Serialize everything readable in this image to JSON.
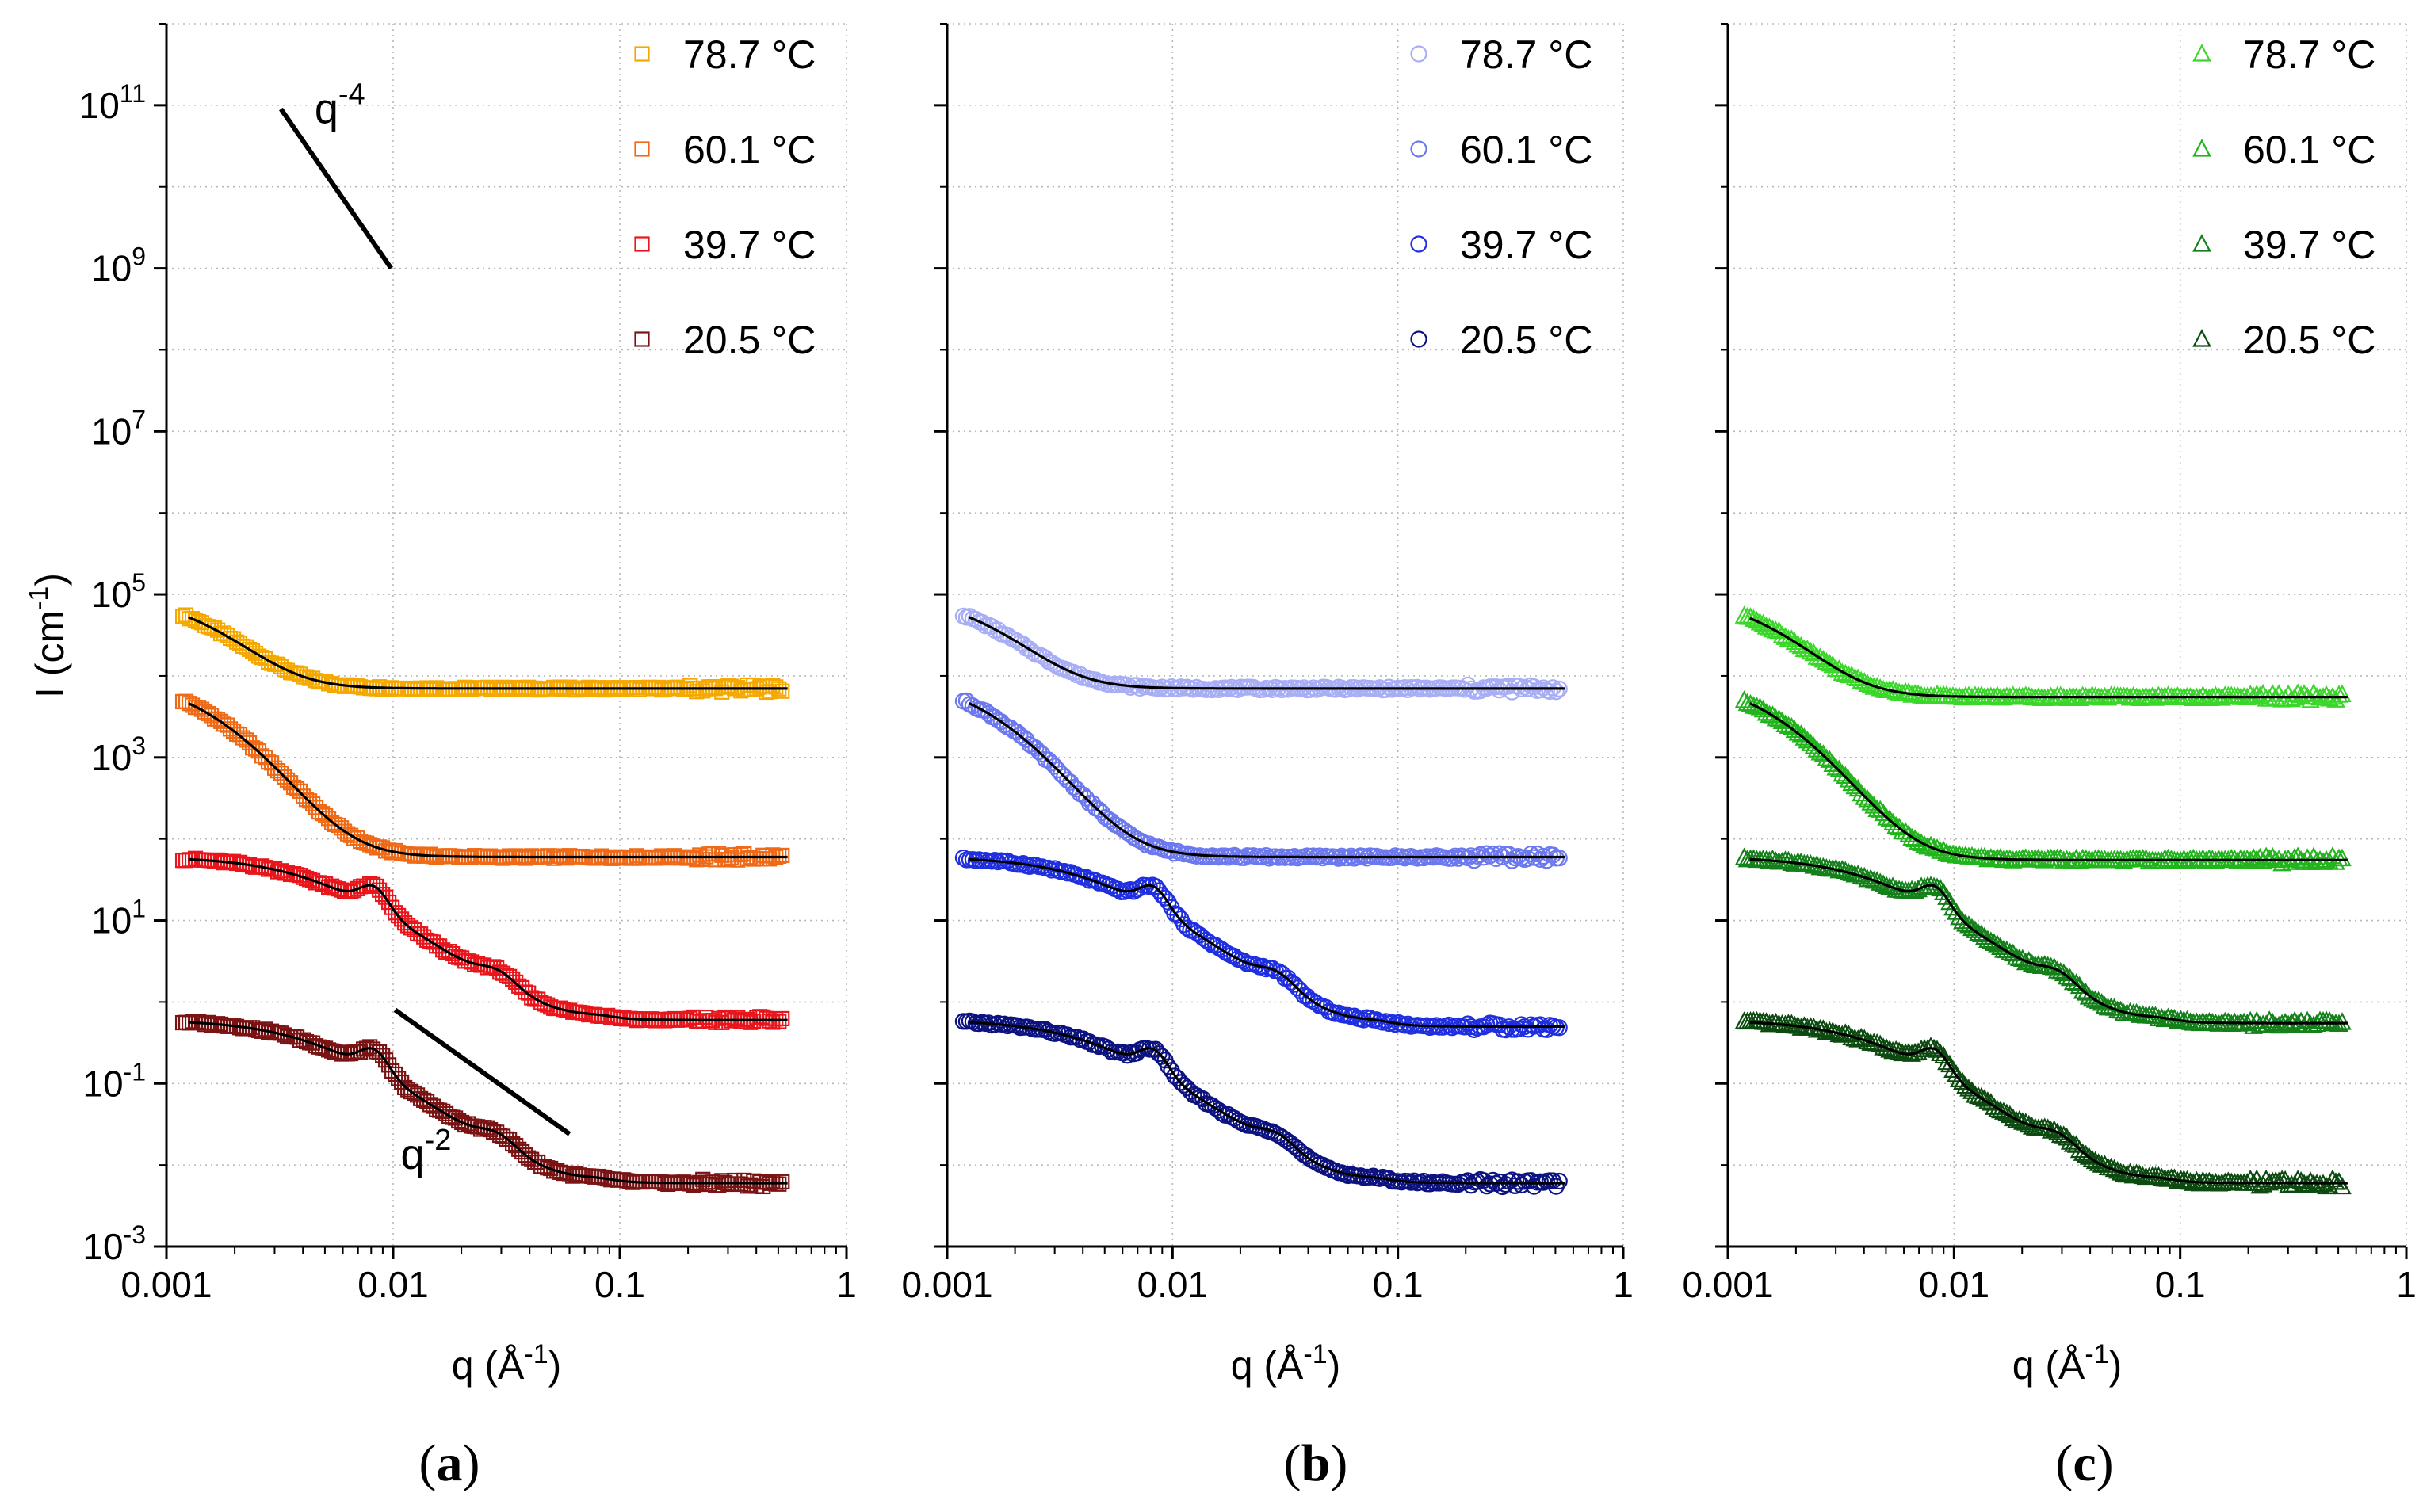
{
  "chart_data": [
    {
      "type": "scatter",
      "panel_label": {
        "open": "(",
        "letter": "a",
        "close": ")"
      },
      "marker": "square",
      "xlabel": {
        "base": "q (Å",
        "sup": "-1",
        "end": ")"
      },
      "ylabel": {
        "base": "I (cm",
        "sup": "-1",
        "end": ")"
      },
      "xscale": "log",
      "yscale": "log",
      "xlim": [
        0.001,
        1
      ],
      "ylim": [
        0.001,
        1000000000000.0
      ],
      "x_ticks": [
        "0.001",
        "0.01",
        "0.1",
        "1"
      ],
      "y_ticks": [
        {
          "base": "10",
          "exp": "-3"
        },
        {
          "base": "10",
          "exp": "-1"
        },
        {
          "base": "10",
          "exp": "1"
        },
        {
          "base": "10",
          "exp": "3"
        },
        {
          "base": "10",
          "exp": "5"
        },
        {
          "base": "10",
          "exp": "7"
        },
        {
          "base": "10",
          "exp": "9"
        },
        {
          "base": "10",
          "exp": "11"
        }
      ],
      "grid": true,
      "legend_position": "top-right",
      "annotations": [
        {
          "base": "q",
          "sup": "-4",
          "line": [
            [
              0.0032,
              90000000000.0
            ],
            [
              0.0098,
              1000000000.0
            ]
          ],
          "text_at": [
            0.0045,
            60000000000.0
          ]
        },
        {
          "base": "q",
          "sup": "-2",
          "line": [
            [
              0.0102,
              0.8
            ],
            [
              0.06,
              0.024
            ]
          ],
          "text_at": [
            0.0108,
            0.009
          ]
        }
      ],
      "series": [
        {
          "name": "78.7 °C",
          "color": "#f5a800",
          "plateau": 7000,
          "offset": 100000.0,
          "kind": "fractal"
        },
        {
          "name": "60.1 °C",
          "color": "#ee6a16",
          "plateau": 60,
          "offset": 10000.0,
          "kind": "fractal"
        },
        {
          "name": "39.7 °C",
          "color": "#e8161c",
          "plateau": 0.6,
          "offset": 100,
          "kind": "cylinder"
        },
        {
          "name": "20.5 °C",
          "color": "#7a1414",
          "plateau": 0.006,
          "offset": 1,
          "kind": "cylinder"
        }
      ]
    },
    {
      "type": "scatter",
      "panel_label": {
        "open": "(",
        "letter": "b",
        "close": ")"
      },
      "marker": "circle",
      "xlabel": {
        "base": "q (Å",
        "sup": "-1",
        "end": ")"
      },
      "xscale": "log",
      "yscale": "log",
      "xlim": [
        0.001,
        1
      ],
      "ylim": [
        0.001,
        1000000000000.0
      ],
      "x_ticks": [
        "0.001",
        "0.01",
        "0.1",
        "1"
      ],
      "grid": true,
      "legend_position": "top-right",
      "series": [
        {
          "name": "78.7 °C",
          "color": "#a8aef5",
          "plateau": 7000,
          "offset": 100000.0,
          "kind": "fractal"
        },
        {
          "name": "60.1 °C",
          "color": "#6c78ee",
          "plateau": 60,
          "offset": 10000.0,
          "kind": "fractal"
        },
        {
          "name": "39.7 °C",
          "color": "#1f2fe0",
          "plateau": 0.5,
          "offset": 100,
          "kind": "cylinder"
        },
        {
          "name": "20.5 °C",
          "color": "#0c1280",
          "plateau": 0.006,
          "offset": 1,
          "kind": "cylinder"
        }
      ]
    },
    {
      "type": "scatter",
      "panel_label": {
        "open": "(",
        "letter": "c",
        "close": ")"
      },
      "marker": "triangle",
      "xlabel": {
        "base": "q (Å",
        "sup": "-1",
        "end": ")"
      },
      "xscale": "log",
      "yscale": "log",
      "xlim": [
        0.001,
        1
      ],
      "ylim": [
        0.001,
        1000000000000.0
      ],
      "x_ticks": [
        "0.001",
        "0.01",
        "0.1",
        "1"
      ],
      "grid": true,
      "legend_position": "top-right",
      "series": [
        {
          "name": "78.7 °C",
          "color": "#3ad62a",
          "plateau": 5500,
          "offset": 100000.0,
          "kind": "fractal"
        },
        {
          "name": "60.1 °C",
          "color": "#22b41c",
          "plateau": 55,
          "offset": 10000.0,
          "kind": "fractal"
        },
        {
          "name": "39.7 °C",
          "color": "#14801a",
          "plateau": 0.55,
          "offset": 100,
          "kind": "cylinder"
        },
        {
          "name": "20.5 °C",
          "color": "#0c4a10",
          "plateau": 0.006,
          "offset": 1,
          "kind": "cylinder"
        }
      ]
    }
  ]
}
